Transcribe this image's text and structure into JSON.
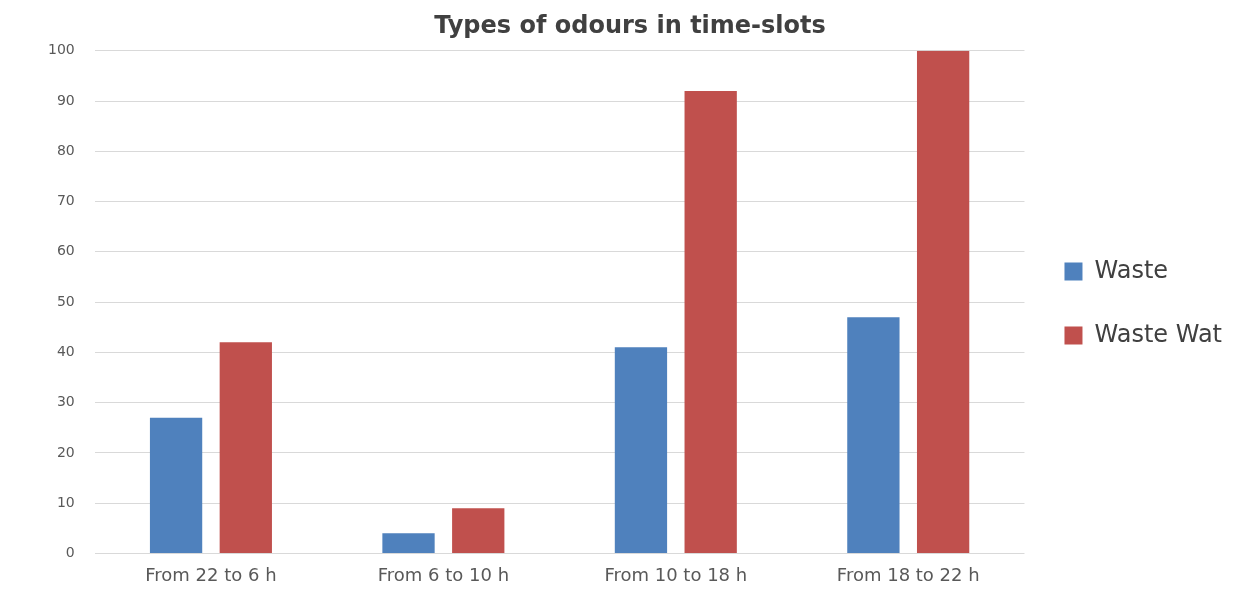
{
  "chart_data": {
    "type": "bar",
    "title": "Types of odours in time-slots",
    "categories": [
      "From 22 to 6 h",
      "From 6 to 10 h",
      "From 10 to 18 h",
      "From 18 to 22 h"
    ],
    "series": [
      {
        "name": "Waste",
        "color": "#4f81bd",
        "values": [
          27,
          4,
          41,
          47
        ]
      },
      {
        "name": "Waste Wat",
        "color": "#c0504d",
        "values": [
          42,
          9,
          92,
          100
        ]
      }
    ],
    "ylim": [
      0,
      100
    ],
    "yticks": [
      0,
      10,
      20,
      30,
      40,
      50,
      60,
      70,
      80,
      90,
      100
    ],
    "grid": "y",
    "legend": "right"
  }
}
